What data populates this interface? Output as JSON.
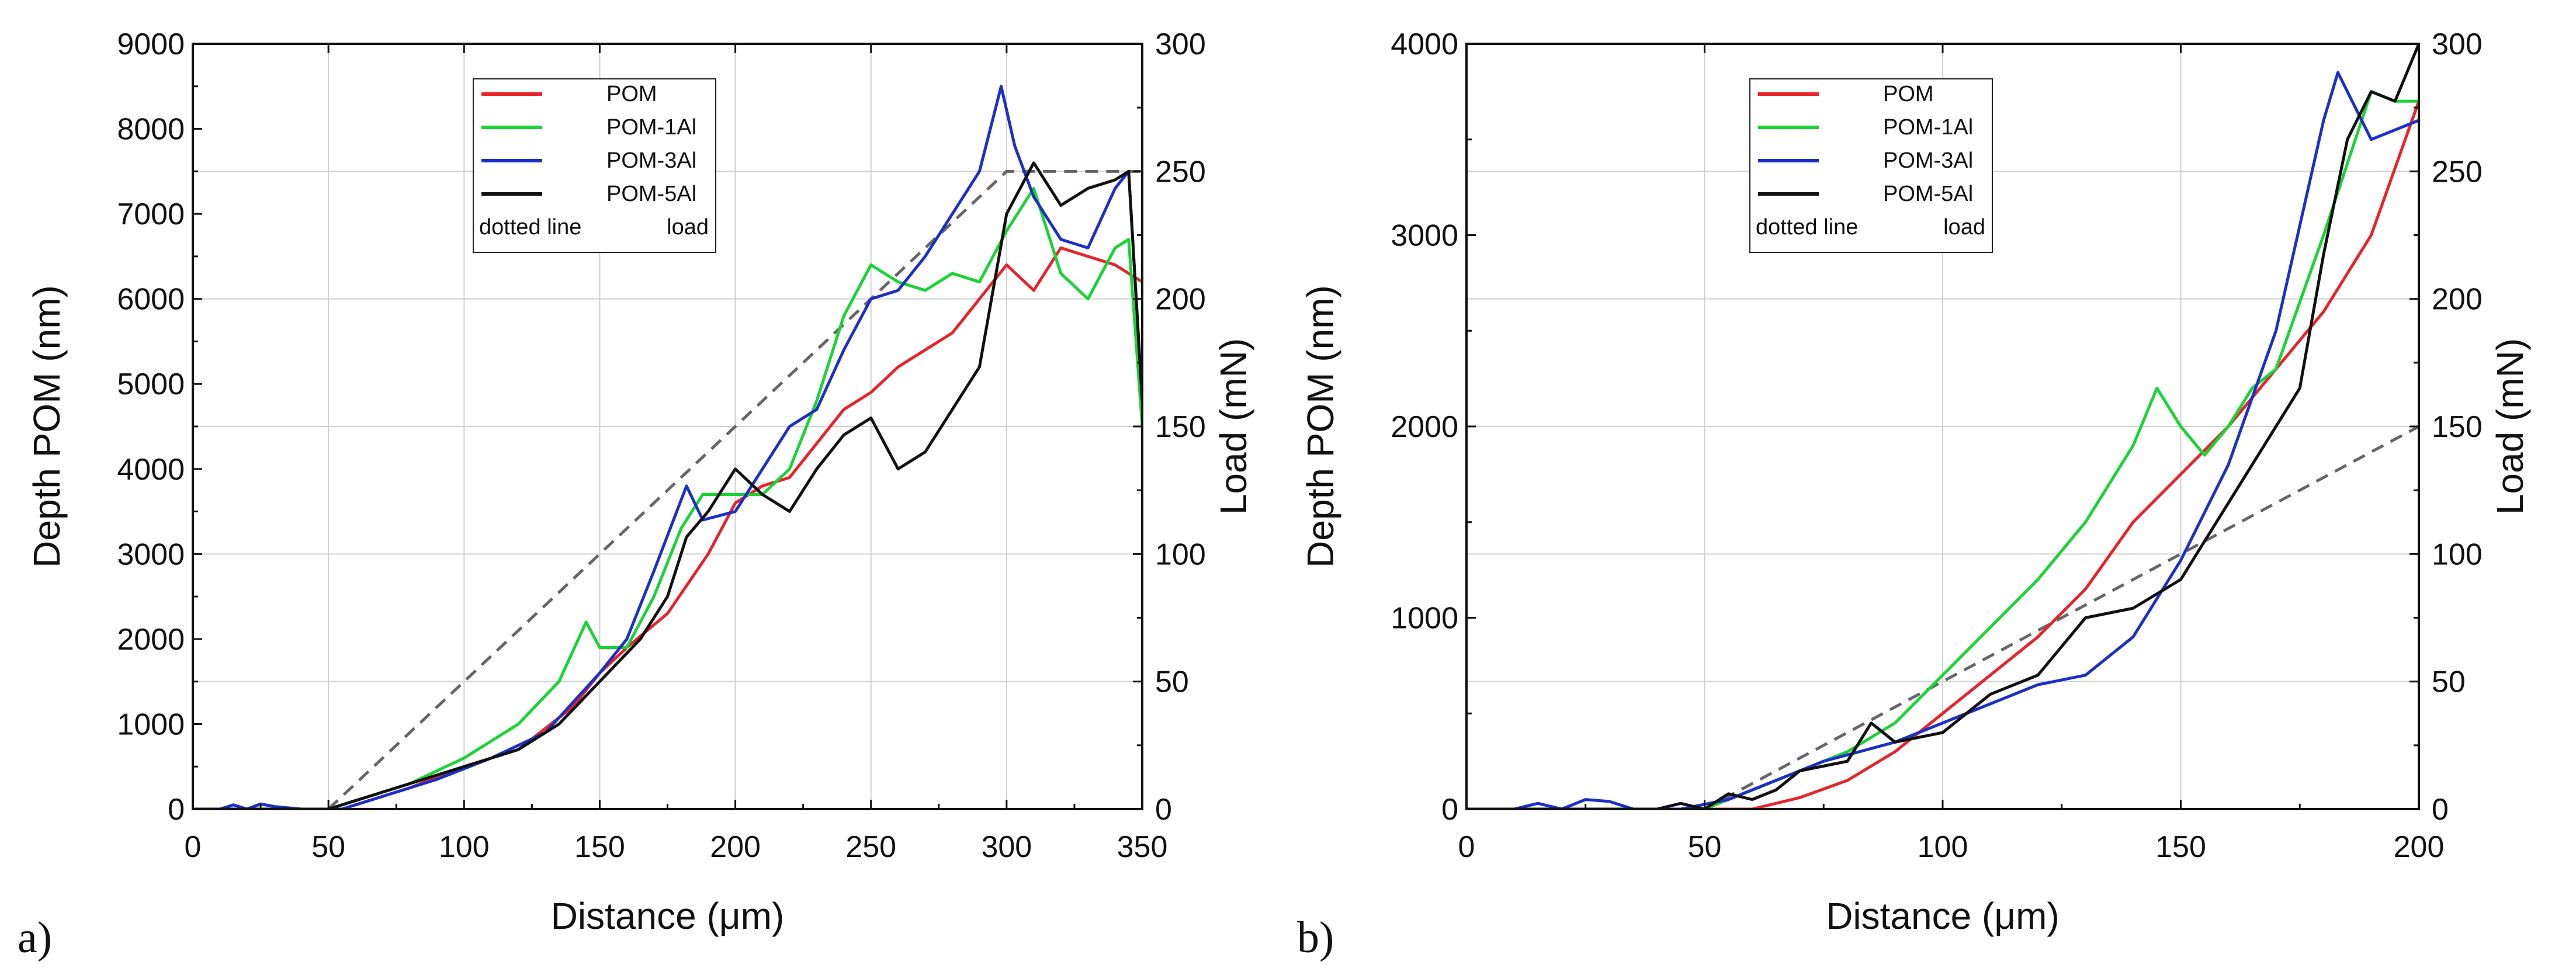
{
  "chart_data": [
    {
      "type": "line",
      "panel_label": "a)",
      "xlabel": "Distance (μm)",
      "ylabel": "Depth POM (nm)",
      "y2label": "Load (mN)",
      "xlim": [
        0,
        350
      ],
      "ylim": [
        0,
        9000
      ],
      "y2lim": [
        0,
        300
      ],
      "xticks": [
        "0",
        "50",
        "100",
        "150",
        "200",
        "250",
        "300",
        "350"
      ],
      "yticks": [
        "0",
        "1000",
        "2000",
        "3000",
        "4000",
        "5000",
        "6000",
        "7000",
        "8000",
        "9000"
      ],
      "y2ticks": [
        "0",
        "50",
        "100",
        "150",
        "200",
        "250",
        "300"
      ],
      "grid": true,
      "legend": {
        "position": "top-center",
        "entries": [
          {
            "label": "POM",
            "color": "#e8232a"
          },
          {
            "label": "POM-1Al",
            "color": "#19d435"
          },
          {
            "label": "POM-3Al",
            "color": "#1c2fc8"
          },
          {
            "label": "POM-5Al",
            "color": "#111111"
          }
        ],
        "note_left": "dotted line",
        "note_right": "load"
      },
      "series": [
        {
          "name": "POM",
          "color": "#e8232a",
          "points": [
            [
              0,
              0
            ],
            [
              55,
              0
            ],
            [
              65,
              100
            ],
            [
              80,
              250
            ],
            [
              100,
              500
            ],
            [
              120,
              700
            ],
            [
              140,
              1200
            ],
            [
              150,
              1600
            ],
            [
              160,
              1900
            ],
            [
              175,
              2300
            ],
            [
              190,
              3000
            ],
            [
              200,
              3600
            ],
            [
              210,
              3800
            ],
            [
              220,
              3900
            ],
            [
              230,
              4300
            ],
            [
              240,
              4700
            ],
            [
              250,
              4900
            ],
            [
              260,
              5200
            ],
            [
              270,
              5400
            ],
            [
              280,
              5600
            ],
            [
              290,
              6000
            ],
            [
              300,
              6400
            ],
            [
              310,
              6100
            ],
            [
              320,
              6600
            ],
            [
              330,
              6500
            ],
            [
              340,
              6400
            ],
            [
              350,
              6200
            ]
          ]
        },
        {
          "name": "POM-1Al",
          "color": "#19d435",
          "points": [
            [
              0,
              0
            ],
            [
              50,
              0
            ],
            [
              60,
              100
            ],
            [
              80,
              300
            ],
            [
              100,
              600
            ],
            [
              120,
              1000
            ],
            [
              135,
              1500
            ],
            [
              145,
              2200
            ],
            [
              150,
              1900
            ],
            [
              160,
              1900
            ],
            [
              170,
              2500
            ],
            [
              180,
              3300
            ],
            [
              188,
              3700
            ],
            [
              200,
              3700
            ],
            [
              210,
              3700
            ],
            [
              220,
              4000
            ],
            [
              230,
              4800
            ],
            [
              240,
              5800
            ],
            [
              250,
              6400
            ],
            [
              260,
              6200
            ],
            [
              270,
              6100
            ],
            [
              280,
              6300
            ],
            [
              290,
              6200
            ],
            [
              300,
              6800
            ],
            [
              310,
              7300
            ],
            [
              320,
              6300
            ],
            [
              330,
              6000
            ],
            [
              340,
              6600
            ],
            [
              345,
              6700
            ],
            [
              350,
              4500
            ]
          ]
        },
        {
          "name": "POM-3Al",
          "color": "#1c2fc8",
          "points": [
            [
              0,
              0
            ],
            [
              10,
              0
            ],
            [
              15,
              50
            ],
            [
              20,
              0
            ],
            [
              25,
              60
            ],
            [
              30,
              30
            ],
            [
              40,
              0
            ],
            [
              55,
              0
            ],
            [
              70,
              150
            ],
            [
              90,
              350
            ],
            [
              110,
              600
            ],
            [
              130,
              900
            ],
            [
              150,
              1600
            ],
            [
              160,
              2000
            ],
            [
              170,
              2800
            ],
            [
              182,
              3800
            ],
            [
              188,
              3400
            ],
            [
              200,
              3500
            ],
            [
              210,
              4000
            ],
            [
              220,
              4500
            ],
            [
              230,
              4700
            ],
            [
              240,
              5400
            ],
            [
              250,
              6000
            ],
            [
              260,
              6100
            ],
            [
              270,
              6500
            ],
            [
              280,
              7000
            ],
            [
              290,
              7500
            ],
            [
              298,
              8500
            ],
            [
              303,
              7800
            ],
            [
              310,
              7200
            ],
            [
              320,
              6700
            ],
            [
              330,
              6600
            ],
            [
              340,
              7300
            ],
            [
              345,
              7500
            ],
            [
              350,
              4800
            ]
          ]
        },
        {
          "name": "POM-5Al",
          "color": "#111111",
          "points": [
            [
              0,
              0
            ],
            [
              40,
              0
            ],
            [
              50,
              0
            ],
            [
              60,
              100
            ],
            [
              80,
              300
            ],
            [
              100,
              500
            ],
            [
              120,
              700
            ],
            [
              135,
              1000
            ],
            [
              150,
              1500
            ],
            [
              165,
              2000
            ],
            [
              175,
              2500
            ],
            [
              182,
              3200
            ],
            [
              190,
              3500
            ],
            [
              200,
              4000
            ],
            [
              210,
              3700
            ],
            [
              220,
              3500
            ],
            [
              230,
              4000
            ],
            [
              240,
              4400
            ],
            [
              250,
              4600
            ],
            [
              260,
              4000
            ],
            [
              270,
              4200
            ],
            [
              280,
              4700
            ],
            [
              290,
              5200
            ],
            [
              300,
              7000
            ],
            [
              310,
              7600
            ],
            [
              320,
              7100
            ],
            [
              330,
              7300
            ],
            [
              340,
              7400
            ],
            [
              345,
              7500
            ],
            [
              350,
              4800
            ]
          ]
        }
      ],
      "load_line": {
        "name": "load",
        "style": "dashed",
        "color": "#666666",
        "points": [
          [
            50,
            0
          ],
          [
            300,
            250
          ],
          [
            350,
            250
          ]
        ]
      }
    },
    {
      "type": "line",
      "panel_label": "b)",
      "xlabel": "Distance (μm)",
      "ylabel": "Depth POM (nm)",
      "y2label": "Load (mN)",
      "xlim": [
        0,
        200
      ],
      "ylim": [
        0,
        4000
      ],
      "y2lim": [
        0,
        300
      ],
      "xticks": [
        "0",
        "50",
        "100",
        "150",
        "200"
      ],
      "yticks": [
        "0",
        "1000",
        "2000",
        "3000",
        "4000"
      ],
      "y2ticks": [
        "0",
        "50",
        "100",
        "150",
        "200",
        "250",
        "300"
      ],
      "grid": true,
      "legend": {
        "position": "top-center",
        "entries": [
          {
            "label": "POM",
            "color": "#e8232a"
          },
          {
            "label": "POM-1Al",
            "color": "#19d435"
          },
          {
            "label": "POM-3Al",
            "color": "#1c2fc8"
          },
          {
            "label": "POM-5Al",
            "color": "#111111"
          }
        ],
        "note_left": "dotted line",
        "note_right": "load"
      },
      "series": [
        {
          "name": "POM",
          "color": "#e8232a",
          "points": [
            [
              0,
              0
            ],
            [
              60,
              0
            ],
            [
              70,
              60
            ],
            [
              80,
              150
            ],
            [
              90,
              300
            ],
            [
              100,
              500
            ],
            [
              110,
              700
            ],
            [
              120,
              900
            ],
            [
              130,
              1150
            ],
            [
              140,
              1500
            ],
            [
              150,
              1750
            ],
            [
              160,
              2000
            ],
            [
              170,
              2300
            ],
            [
              180,
              2600
            ],
            [
              190,
              3000
            ],
            [
              200,
              3700
            ]
          ]
        },
        {
          "name": "POM-1Al",
          "color": "#19d435",
          "points": [
            [
              0,
              0
            ],
            [
              50,
              0
            ],
            [
              60,
              100
            ],
            [
              70,
              200
            ],
            [
              80,
              300
            ],
            [
              90,
              450
            ],
            [
              100,
              700
            ],
            [
              110,
              950
            ],
            [
              120,
              1200
            ],
            [
              130,
              1500
            ],
            [
              140,
              1900
            ],
            [
              145,
              2200
            ],
            [
              150,
              2000
            ],
            [
              155,
              1850
            ],
            [
              160,
              2000
            ],
            [
              165,
              2200
            ],
            [
              170,
              2300
            ],
            [
              180,
              3000
            ],
            [
              190,
              3750
            ],
            [
              195,
              3700
            ],
            [
              200,
              3700
            ]
          ]
        },
        {
          "name": "POM-3Al",
          "color": "#1c2fc8",
          "points": [
            [
              0,
              0
            ],
            [
              10,
              0
            ],
            [
              15,
              30
            ],
            [
              20,
              0
            ],
            [
              25,
              50
            ],
            [
              30,
              40
            ],
            [
              35,
              0
            ],
            [
              45,
              0
            ],
            [
              55,
              50
            ],
            [
              65,
              150
            ],
            [
              75,
              250
            ],
            [
              90,
              350
            ],
            [
              100,
              450
            ],
            [
              110,
              550
            ],
            [
              120,
              650
            ],
            [
              130,
              700
            ],
            [
              140,
              900
            ],
            [
              150,
              1300
            ],
            [
              160,
              1800
            ],
            [
              170,
              2500
            ],
            [
              180,
              3600
            ],
            [
              183,
              3850
            ],
            [
              190,
              3500
            ],
            [
              200,
              3600
            ]
          ]
        },
        {
          "name": "POM-5Al",
          "color": "#111111",
          "points": [
            [
              0,
              0
            ],
            [
              40,
              0
            ],
            [
              45,
              30
            ],
            [
              50,
              0
            ],
            [
              55,
              80
            ],
            [
              60,
              50
            ],
            [
              65,
              100
            ],
            [
              70,
              200
            ],
            [
              80,
              250
            ],
            [
              85,
              450
            ],
            [
              90,
              350
            ],
            [
              100,
              400
            ],
            [
              110,
              600
            ],
            [
              120,
              700
            ],
            [
              130,
              1000
            ],
            [
              140,
              1050
            ],
            [
              150,
              1200
            ],
            [
              160,
              1600
            ],
            [
              170,
              2000
            ],
            [
              175,
              2200
            ],
            [
              180,
              2900
            ],
            [
              185,
              3500
            ],
            [
              190,
              3750
            ],
            [
              195,
              3700
            ],
            [
              200,
              4000
            ]
          ]
        }
      ],
      "load_line": {
        "name": "load",
        "style": "dashed",
        "color": "#666666",
        "points": [
          [
            50,
            0
          ],
          [
            200,
            150
          ]
        ]
      }
    }
  ]
}
